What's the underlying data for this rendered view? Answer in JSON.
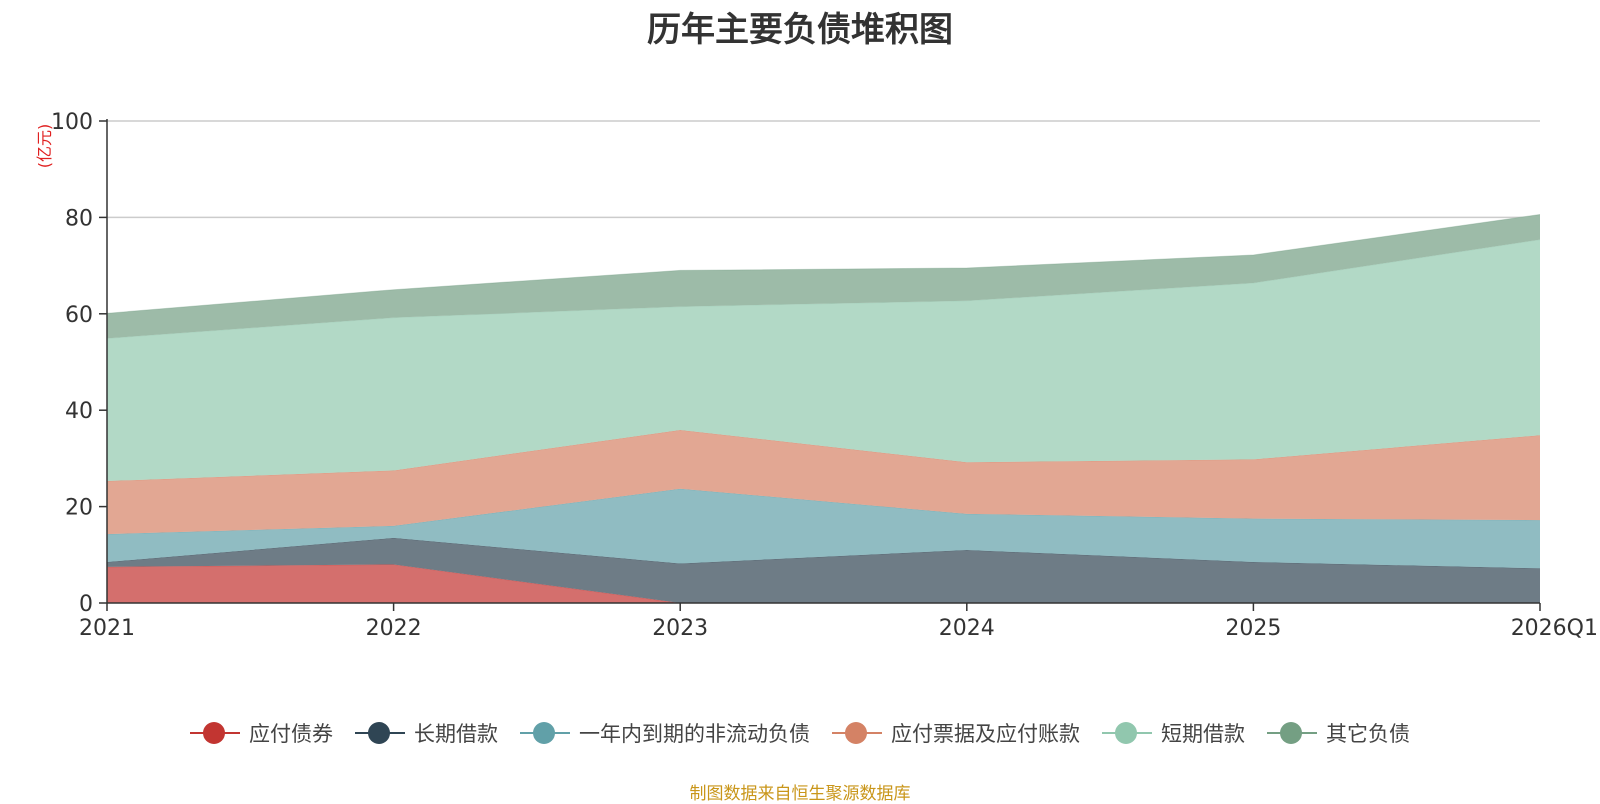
{
  "chart_data": {
    "type": "area",
    "stacked": true,
    "title": "历年主要负债堆积图",
    "ylabel": "(亿元)",
    "xlabel": "",
    "categories": [
      "2021",
      "2022",
      "2023",
      "2024",
      "2025",
      "2026Q1"
    ],
    "ylim": [
      0,
      100
    ],
    "yticks": [
      0,
      20,
      40,
      60,
      80,
      100
    ],
    "grid": true,
    "legend_position": "bottom",
    "series": [
      {
        "name": "应付债券",
        "color": "#c23531",
        "fill": "#d46f6d",
        "values": [
          7.5,
          8.0,
          0,
          0,
          0,
          0
        ]
      },
      {
        "name": "长期借款",
        "color": "#2f4554",
        "fill": "#6e7c86",
        "values": [
          1.0,
          5.5,
          8.2,
          11.0,
          8.5,
          7.2
        ]
      },
      {
        "name": "一年内到期的非流动负债",
        "color": "#61a0a8",
        "fill": "#90bcc2",
        "values": [
          5.8,
          2.5,
          15.5,
          7.5,
          9.0,
          10.0
        ]
      },
      {
        "name": "应付票据及应付账款",
        "color": "#d48265",
        "fill": "#e2a793",
        "values": [
          11.0,
          11.5,
          12.2,
          10.7,
          12.3,
          17.6
        ]
      },
      {
        "name": "短期借款",
        "color": "#91c7ae",
        "fill": "#b2d9c6",
        "values": [
          29.6,
          31.7,
          25.6,
          33.5,
          36.6,
          40.6
        ]
      },
      {
        "name": "其它负债",
        "color": "#749f83",
        "fill": "#9dbba8",
        "values": [
          5.2,
          5.8,
          7.5,
          6.8,
          5.8,
          5.2
        ]
      }
    ]
  },
  "source_note": "制图数据来自恒生聚源数据库"
}
